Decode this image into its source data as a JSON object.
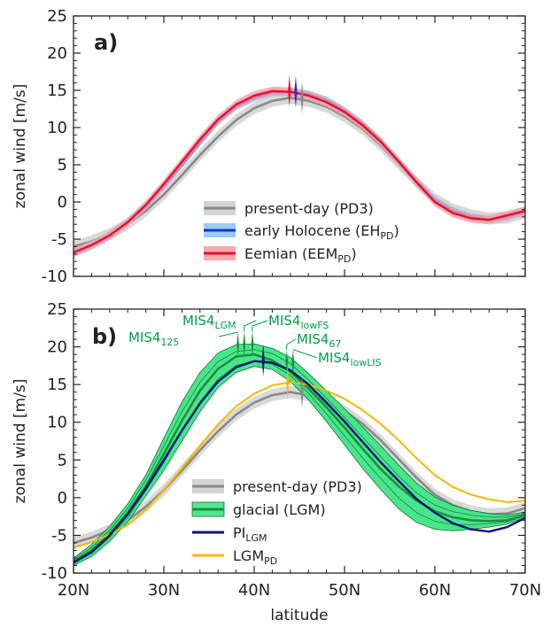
{
  "colors": {
    "pd": "#8a8a8a",
    "pd_band": "#cfcfcf",
    "eh": "#1a2ee8",
    "eh_band": "#8ec9ee",
    "eem": "#e8102a",
    "eem_band": "#f4a0a8",
    "glacial": "#1f8f3c",
    "glacial_band": "#3ee486",
    "pilgm": "#0c137a",
    "lgmpd": "#f5b800",
    "annotation": "#00a04a"
  },
  "x_axis": {
    "label": "latitude",
    "ticks": [
      {
        "value": 20,
        "label": "20N"
      },
      {
        "value": 30,
        "label": "30N"
      },
      {
        "value": 40,
        "label": "40N"
      },
      {
        "value": 50,
        "label": "50N"
      },
      {
        "value": 60,
        "label": "60N"
      },
      {
        "value": 70,
        "label": "70N"
      }
    ]
  },
  "chart_data": [
    {
      "type": "line",
      "panel_label": "a)",
      "ylabel": "zonal wind [m/s]",
      "xlim": [
        20,
        70
      ],
      "ylim": [
        -10,
        25
      ],
      "yticks": [
        -10,
        -5,
        0,
        5,
        10,
        15,
        20,
        25
      ],
      "grid": false,
      "legend_placement": "bottom-right",
      "series": [
        {
          "name": "present-day (PD3)",
          "x": [
            20,
            22,
            24,
            26,
            28,
            30,
            32,
            34,
            36,
            38,
            40,
            42,
            44,
            46,
            48,
            50,
            52,
            54,
            56,
            58,
            60,
            62,
            64,
            66,
            68,
            70
          ],
          "y": [
            -6,
            -5.3,
            -4.3,
            -3,
            -1.2,
            1,
            3.6,
            6.3,
            8.8,
            11,
            12.6,
            13.6,
            14,
            13.6,
            12.8,
            11.5,
            9.8,
            7.6,
            5.1,
            2.6,
            0.4,
            -1,
            -1.8,
            -2.2,
            -2.1,
            -1.4
          ],
          "band": 0.8,
          "jet_marker": {
            "lat": 45.3,
            "speed": 14.0
          }
        },
        {
          "name": "early Holocene (EH_PD)",
          "legend_label": "early Holocene (EH",
          "legend_sub": "PD",
          "x": [
            20,
            22,
            24,
            26,
            28,
            30,
            32,
            34,
            36,
            38,
            40,
            42,
            44,
            46,
            48,
            50,
            52,
            54,
            56,
            58,
            60,
            62,
            64,
            66,
            68,
            70
          ],
          "y": [
            -6.8,
            -5.8,
            -4.5,
            -2.8,
            -0.6,
            2.1,
            5,
            8,
            10.8,
            12.8,
            14,
            14.7,
            14.8,
            14.5,
            13.7,
            12.3,
            10.5,
            8.2,
            5.5,
            2.8,
            0.3,
            -1.2,
            -2,
            -2.4,
            -2,
            -1.3
          ],
          "band": 0.5,
          "jet_marker": {
            "lat": 44.6,
            "speed": 14.8
          }
        },
        {
          "name": "Eemian (EEM_PD)",
          "legend_label": "Eemian (EEM",
          "legend_sub": "PD",
          "x": [
            20,
            22,
            24,
            26,
            28,
            30,
            32,
            34,
            36,
            38,
            40,
            42,
            44,
            46,
            48,
            50,
            52,
            54,
            56,
            58,
            60,
            62,
            64,
            66,
            68,
            70
          ],
          "y": [
            -6.8,
            -5.8,
            -4.5,
            -2.7,
            -0.4,
            2.4,
            5.4,
            8.4,
            11.1,
            13.1,
            14.3,
            14.9,
            14.8,
            14.3,
            13.4,
            12.1,
            10.3,
            8.1,
            5.4,
            2.6,
            0,
            -1.5,
            -2.2,
            -2.4,
            -1.8,
            -1.2
          ],
          "band": 0.6,
          "jet_marker": {
            "lat": 43.9,
            "speed": 14.9
          }
        }
      ]
    },
    {
      "type": "line",
      "panel_label": "b)",
      "ylabel": "zonal wind [m/s]",
      "xlim": [
        20,
        70
      ],
      "ylim": [
        -10,
        25
      ],
      "yticks": [
        -10,
        -5,
        0,
        5,
        10,
        15,
        20,
        25
      ],
      "grid": false,
      "legend_placement": "bottom-left",
      "series": [
        {
          "name": "present-day (PD3)",
          "x": [
            20,
            22,
            24,
            26,
            28,
            30,
            32,
            34,
            36,
            38,
            40,
            42,
            44,
            46,
            48,
            50,
            52,
            54,
            56,
            58,
            60,
            62,
            64,
            66,
            68,
            70
          ],
          "y": [
            -6,
            -5.3,
            -4.3,
            -3,
            -1.2,
            1,
            3.6,
            6.3,
            8.8,
            11,
            12.6,
            13.6,
            14,
            13.6,
            12.8,
            11.5,
            9.8,
            7.6,
            5.1,
            2.6,
            0.4,
            -1,
            -1.8,
            -2.2,
            -2.1,
            -1.4
          ],
          "band": 0.8,
          "jet_marker": {
            "lat": 45.3,
            "speed": 14.0
          }
        },
        {
          "name": "glacial (LGM)",
          "x": [
            20,
            22,
            24,
            26,
            28,
            30,
            32,
            34,
            36,
            38,
            40,
            42,
            44,
            46,
            48,
            50,
            52,
            54,
            56,
            58,
            60,
            62,
            64,
            66,
            68,
            70
          ],
          "y": [
            -8.5,
            -7,
            -4.8,
            -2,
            1.5,
            5.8,
            10.2,
            14.2,
            17.1,
            18.7,
            19,
            18.2,
            16.7,
            14.5,
            12,
            9.3,
            6.5,
            3.8,
            1.5,
            -0.4,
            -1.8,
            -2.6,
            -3,
            -3.1,
            -3,
            -2.3
          ],
          "band_lower": [
            -9,
            -7.8,
            -5.8,
            -3.2,
            0.2,
            3.6,
            7.5,
            11.4,
            14.6,
            16.6,
            17.4,
            17,
            15.4,
            13,
            10.1,
            7,
            3.9,
            1.1,
            -1.5,
            -3.3,
            -4.2,
            -4.4,
            -4.2,
            -3.9,
            -3.5,
            -2.6
          ],
          "band_upper": [
            -8,
            -6.2,
            -3.8,
            -0.8,
            3,
            7.9,
            12.7,
            16.6,
            19.2,
            20.3,
            20.4,
            19.8,
            18.6,
            16.5,
            14.2,
            11.8,
            9.4,
            6.9,
            4.3,
            1.9,
            0.1,
            -1,
            -1.7,
            -2.1,
            -2.3,
            -1.9
          ],
          "members": [
            {
              "name": "MIS4125",
              "label": "MIS4",
              "sub": "125",
              "lat": 38.2,
              "speed": 20.3
            },
            {
              "name": "MIS4LGM",
              "label": "MIS4",
              "sub": "LGM",
              "lat": 38.9,
              "speed": 20.4
            },
            {
              "name": "MIS4lowFS",
              "label": "MIS4",
              "sub": "lowFS",
              "lat": 39.8,
              "speed": 20.4
            },
            {
              "name": "MIS467",
              "label": "MIS4",
              "sub": "67",
              "lat": 43.6,
              "speed": 18.0
            },
            {
              "name": "MIS4lowLIS",
              "label": "MIS4",
              "sub": "lowLIS",
              "lat": 44.3,
              "speed": 18.0
            }
          ]
        },
        {
          "name": "PI_LGM",
          "legend_label": "PI",
          "legend_sub": "LGM",
          "x": [
            20,
            22,
            24,
            26,
            28,
            30,
            32,
            34,
            36,
            38,
            40,
            42,
            44,
            46,
            48,
            50,
            52,
            54,
            56,
            58,
            60,
            62,
            64,
            66,
            68,
            70
          ],
          "y": [
            -8.6,
            -7.2,
            -5,
            -2.2,
            1.2,
            5,
            8.9,
            12.5,
            15.4,
            17.3,
            18.1,
            17.9,
            16.9,
            15,
            12.6,
            10.1,
            7.4,
            4.7,
            2.2,
            -0.2,
            -2,
            -3.4,
            -4.2,
            -4.5,
            -3.9,
            -2.7
          ],
          "jet_marker": {
            "lat": 41.0,
            "speed": 18.2
          }
        },
        {
          "name": "LGM_PD",
          "legend_label": "LGM",
          "legend_sub": "PD",
          "x": [
            20,
            22,
            24,
            26,
            28,
            30,
            32,
            34,
            36,
            38,
            40,
            42,
            44,
            46,
            48,
            50,
            52,
            54,
            56,
            58,
            60,
            62,
            64,
            66,
            68,
            70
          ],
          "y": [
            -6.6,
            -5.9,
            -4.9,
            -3.6,
            -1.6,
            1,
            3.9,
            6.9,
            9.7,
            12.1,
            13.8,
            14.9,
            15.3,
            15,
            14.2,
            13.1,
            11.6,
            9.8,
            7.6,
            5.2,
            3,
            1.4,
            0.4,
            -0.2,
            -0.6,
            -0.4
          ],
          "jet_marker": {
            "lat": 43.7,
            "speed": 15.3
          }
        }
      ]
    }
  ]
}
